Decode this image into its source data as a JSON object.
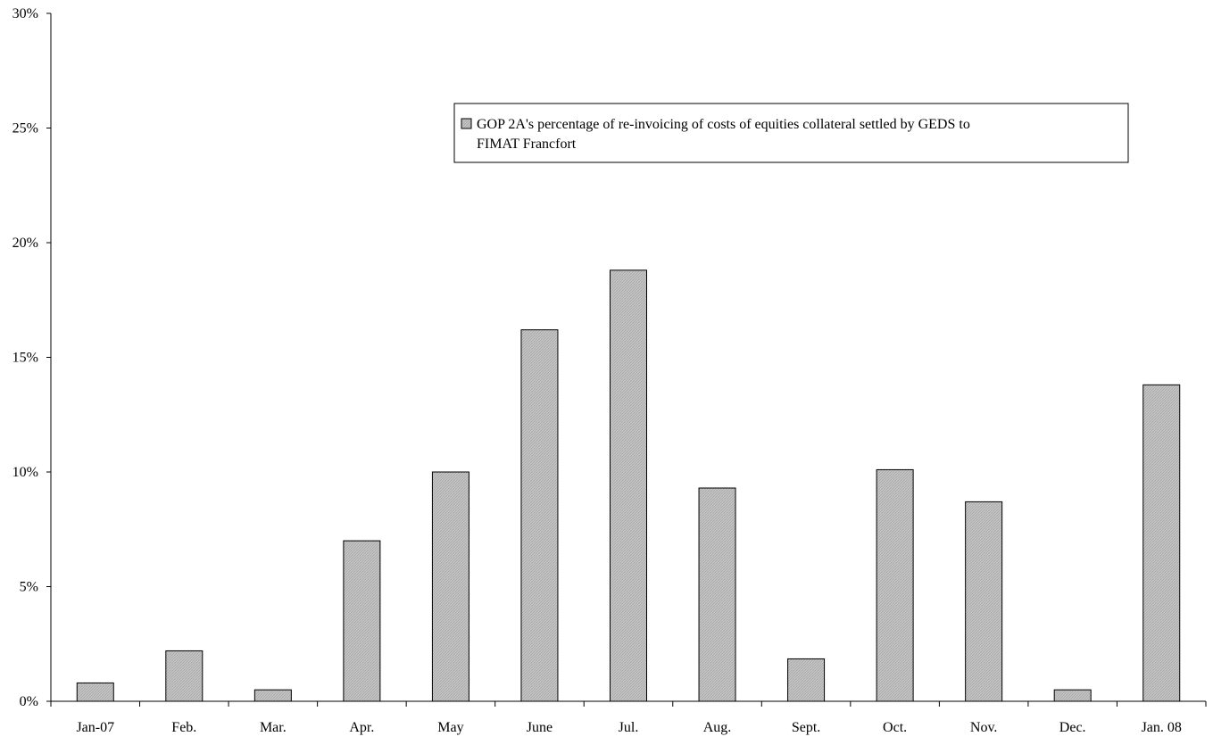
{
  "chart_data": {
    "type": "bar",
    "categories": [
      "Jan-07",
      "Feb.",
      "Mar.",
      "Apr.",
      "May",
      "June",
      "Jul.",
      "Aug.",
      "Sept.",
      "Oct.",
      "Nov.",
      "Dec.",
      "Jan. 08"
    ],
    "series": [
      {
        "name": "GOP 2A's percentage of re-invoicing of costs of equities collateral settled by GEDS to FIMAT Francfort",
        "values": [
          0.8,
          2.2,
          0.5,
          7.0,
          10.0,
          16.2,
          18.8,
          9.3,
          1.85,
          10.1,
          8.7,
          0.5,
          13.8
        ]
      }
    ],
    "title": "",
    "xlabel": "",
    "ylabel": "",
    "ylim": [
      0,
      30
    ],
    "yticks": [
      "0%",
      "5%",
      "10%",
      "15%",
      "20%",
      "25%",
      "30%"
    ],
    "grid": false,
    "legend": {
      "placement": "top-right",
      "lines": [
        "GOP 2A's percentage of re-invoicing of costs of equities collateral settled by GEDS to",
        "FIMAT Francfort"
      ]
    },
    "colors": {
      "bar_fill": "#c0c0c0",
      "bar_stroke": "#000000",
      "axis": "#000000"
    }
  }
}
